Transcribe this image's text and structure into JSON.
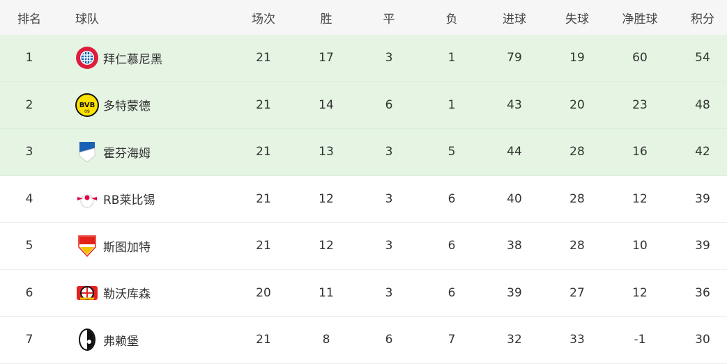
{
  "headers": {
    "rank": "排名",
    "team": "球队",
    "played": "场次",
    "won": "胜",
    "drawn": "平",
    "lost": "负",
    "gf": "进球",
    "ga": "失球",
    "gd": "净胜球",
    "pts": "积分"
  },
  "highlight_color": "#e5f4e3",
  "rows": [
    {
      "rank": "1",
      "team": "拜仁慕尼黑",
      "logo": "bayern-logo",
      "played": "21",
      "won": "17",
      "drawn": "3",
      "lost": "1",
      "gf": "79",
      "ga": "19",
      "gd": "60",
      "pts": "54",
      "highlight": true
    },
    {
      "rank": "2",
      "team": "多特蒙德",
      "logo": "dortmund-logo",
      "logo_text": "BVB",
      "played": "21",
      "won": "14",
      "drawn": "6",
      "lost": "1",
      "gf": "43",
      "ga": "20",
      "gd": "23",
      "pts": "48",
      "highlight": true
    },
    {
      "rank": "3",
      "team": "霍芬海姆",
      "logo": "hoffenheim-logo",
      "played": "21",
      "won": "13",
      "drawn": "3",
      "lost": "5",
      "gf": "44",
      "ga": "28",
      "gd": "16",
      "pts": "42",
      "highlight": true
    },
    {
      "rank": "4",
      "team": "RB莱比锡",
      "logo": "leipzig-logo",
      "played": "21",
      "won": "12",
      "drawn": "3",
      "lost": "6",
      "gf": "40",
      "ga": "28",
      "gd": "12",
      "pts": "39",
      "highlight": false
    },
    {
      "rank": "5",
      "team": "斯图加特",
      "logo": "stuttgart-logo",
      "played": "21",
      "won": "12",
      "drawn": "3",
      "lost": "6",
      "gf": "38",
      "ga": "28",
      "gd": "10",
      "pts": "39",
      "highlight": false
    },
    {
      "rank": "6",
      "team": "勒沃库森",
      "logo": "leverkusen-logo",
      "played": "20",
      "won": "11",
      "drawn": "3",
      "lost": "6",
      "gf": "39",
      "ga": "27",
      "gd": "12",
      "pts": "36",
      "highlight": false
    },
    {
      "rank": "7",
      "team": "弗赖堡",
      "logo": "freiburg-logo",
      "played": "21",
      "won": "8",
      "drawn": "6",
      "lost": "7",
      "gf": "32",
      "ga": "33",
      "gd": "-1",
      "pts": "30",
      "highlight": false
    }
  ]
}
